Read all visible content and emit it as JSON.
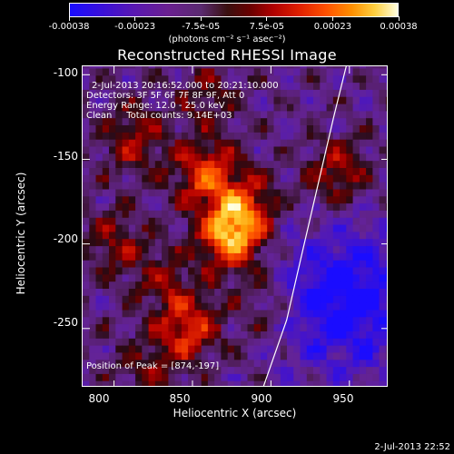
{
  "colorbar": {
    "tick_labels": [
      "-0.00038",
      "-0.00023",
      "-7.5e-05",
      "7.5e-05",
      "0.00023",
      "0.00038"
    ],
    "unit_label": "(photons cm⁻² s⁻¹ asec⁻²)"
  },
  "chart_data": {
    "type": "heatmap",
    "title": "Reconstructed RHESSI Image",
    "xlabel": "Heliocentric X (arcsec)",
    "ylabel": "Heliocentric Y (arcsec)",
    "xlim": [
      780,
      975
    ],
    "ylim": [
      -285,
      -95
    ],
    "xticks": [
      "800",
      "850",
      "900",
      "950"
    ],
    "yticks": [
      "-100",
      "-150",
      "-200",
      "-250"
    ],
    "clim": [
      -0.00038,
      0.00038
    ],
    "annotations": [
      "2-Jul-2013 20:16:52.000 to 20:21:10.000",
      "Detectors: 3F 5F 6F 7F 8F 9F, Att 0",
      "Energy Range: 12.0 - 25.0 keV",
      "Clean     Total counts: 9.14E+03",
      "Position of Peak = [874,-197]"
    ],
    "sources": [
      {
        "x": 856,
        "y": -160,
        "value": 0.0003
      },
      {
        "x": 872,
        "y": -198,
        "value": 0.00038
      },
      {
        "x": 882,
        "y": -180,
        "value": 0.00025
      },
      {
        "x": 846,
        "y": -252,
        "value": 0.00026
      },
      {
        "x": 810,
        "y": -140,
        "value": 0.00018
      },
      {
        "x": 800,
        "y": -200,
        "value": 0.00016
      },
      {
        "x": 940,
        "y": -160,
        "value": 0.0002
      },
      {
        "x": 830,
        "y": -225,
        "value": 0.00014
      },
      {
        "x": 895,
        "y": -240,
        "value": 0.00012
      },
      {
        "x": 820,
        "y": -275,
        "value": 0.00013
      },
      {
        "x": 858,
        "y": -115,
        "value": 0.00012
      }
    ],
    "negative_region": {
      "x": 945,
      "y": -235,
      "value": -0.0003
    },
    "limb": [
      [
        895,
        -285
      ],
      [
        910,
        -245
      ],
      [
        920,
        -205
      ],
      [
        930,
        -165
      ],
      [
        940,
        -125
      ],
      [
        948,
        -95
      ]
    ],
    "grid": false,
    "legend": "none"
  },
  "footer": {
    "timestamp": "2-Jul-2013 22:52"
  }
}
